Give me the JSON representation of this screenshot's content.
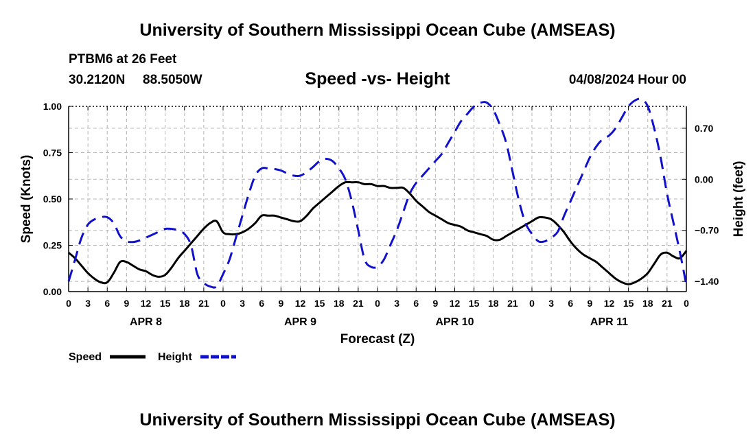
{
  "header": {
    "title": "University of Southern Mississippi Ocean Cube (AMSEAS)",
    "station": "PTBM6 at 26 Feet",
    "latitude": "30.2120N",
    "longitude": "88.5050W",
    "subtitle": "Speed -vs- Height",
    "datetime": "04/08/2024 Hour 00"
  },
  "footer": {
    "title": "University of Southern Mississippi Ocean Cube (AMSEAS)"
  },
  "chart_data": {
    "type": "line",
    "title": "Speed -vs- Height",
    "xlabel": "Forecast (Z)",
    "ylabel": "Speed (Knots)",
    "y2label": "Height (feet)",
    "grid": true,
    "xlim": [
      0,
      96
    ],
    "ylim": [
      0,
      1.0
    ],
    "y2lim": [
      -1.54,
      1.0
    ],
    "x_tick_labels": [
      "0",
      "3",
      "6",
      "9",
      "12",
      "15",
      "18",
      "21",
      "0",
      "3",
      "6",
      "9",
      "12",
      "15",
      "18",
      "21",
      "0",
      "3",
      "6",
      "9",
      "12",
      "15",
      "18",
      "21",
      "0",
      "3",
      "6",
      "9",
      "12",
      "15",
      "18",
      "21",
      "0"
    ],
    "y_ticks": [
      "0.00",
      "0.25",
      "0.50",
      "0.75",
      "1.00"
    ],
    "y2_ticks": [
      "−1.40",
      "−0.70",
      "0.00",
      "0.70"
    ],
    "y2_tick_values": [
      -1.4,
      -0.7,
      0.0,
      0.7
    ],
    "date_labels": [
      {
        "label": "APR 8",
        "hour": 12
      },
      {
        "label": "APR 9",
        "hour": 36
      },
      {
        "label": "APR 10",
        "hour": 60
      },
      {
        "label": "APR 11",
        "hour": 84
      }
    ],
    "legend": [
      {
        "name": "Speed",
        "color": "#000000",
        "style": "solid"
      },
      {
        "name": "Height",
        "color": "#1111cc",
        "style": "dashed"
      }
    ],
    "series": [
      {
        "name": "Speed",
        "axis": "left",
        "color": "#000000",
        "x": [
          0,
          1,
          2,
          3,
          4,
          5,
          6,
          7,
          8,
          9,
          10,
          11,
          12,
          13,
          14,
          15,
          16,
          17,
          18,
          19,
          20,
          21,
          22,
          23,
          24,
          25,
          26,
          27,
          28,
          29,
          30,
          31,
          32,
          33,
          34,
          35,
          36,
          37,
          38,
          39,
          40,
          41,
          42,
          43,
          44,
          45,
          46,
          47,
          48,
          49,
          50,
          51,
          52,
          53,
          54,
          55,
          56,
          57,
          58,
          59,
          60,
          61,
          62,
          63,
          64,
          65,
          66,
          67,
          68,
          69,
          70,
          71,
          72,
          73,
          74,
          75,
          76,
          77,
          78,
          79,
          80,
          81,
          82,
          83,
          84,
          85,
          86,
          87,
          88,
          89,
          90,
          91,
          92,
          93,
          94,
          95,
          96
        ],
        "values": [
          0.21,
          0.18,
          0.14,
          0.1,
          0.07,
          0.05,
          0.05,
          0.1,
          0.16,
          0.16,
          0.14,
          0.12,
          0.11,
          0.09,
          0.08,
          0.09,
          0.13,
          0.18,
          0.22,
          0.26,
          0.3,
          0.34,
          0.37,
          0.38,
          0.32,
          0.31,
          0.31,
          0.32,
          0.34,
          0.37,
          0.41,
          0.41,
          0.41,
          0.4,
          0.39,
          0.38,
          0.38,
          0.41,
          0.45,
          0.48,
          0.51,
          0.54,
          0.57,
          0.59,
          0.59,
          0.59,
          0.58,
          0.58,
          0.57,
          0.57,
          0.56,
          0.56,
          0.56,
          0.53,
          0.49,
          0.46,
          0.43,
          0.41,
          0.39,
          0.37,
          0.36,
          0.35,
          0.33,
          0.32,
          0.31,
          0.3,
          0.28,
          0.28,
          0.3,
          0.32,
          0.34,
          0.36,
          0.38,
          0.4,
          0.4,
          0.39,
          0.36,
          0.32,
          0.27,
          0.23,
          0.2,
          0.18,
          0.16,
          0.13,
          0.1,
          0.07,
          0.05,
          0.04,
          0.05,
          0.07,
          0.1,
          0.15,
          0.2,
          0.21,
          0.19,
          0.18,
          0.22
        ]
      },
      {
        "name": "Height",
        "axis": "right",
        "color": "#1111cc",
        "x": [
          0,
          1,
          2,
          3,
          4,
          5,
          6,
          7,
          8,
          9,
          10,
          11,
          12,
          13,
          14,
          15,
          16,
          17,
          18,
          19,
          20,
          21,
          22,
          23,
          24,
          25,
          26,
          27,
          28,
          29,
          30,
          31,
          32,
          33,
          34,
          35,
          36,
          37,
          38,
          39,
          40,
          41,
          42,
          43,
          44,
          45,
          46,
          47,
          48,
          49,
          50,
          51,
          52,
          53,
          54,
          55,
          56,
          57,
          58,
          59,
          60,
          61,
          62,
          63,
          64,
          65,
          66,
          67,
          68,
          69,
          70,
          71,
          72,
          73,
          74,
          75,
          76,
          77,
          78,
          79,
          80,
          81,
          82,
          83,
          84,
          85,
          86,
          87,
          88,
          89,
          90,
          91,
          92,
          93,
          94,
          95,
          96
        ],
        "values": [
          -1.4,
          -1.1,
          -0.8,
          -0.62,
          -0.55,
          -0.52,
          -0.52,
          -0.6,
          -0.78,
          -0.85,
          -0.86,
          -0.84,
          -0.8,
          -0.76,
          -0.72,
          -0.68,
          -0.68,
          -0.7,
          -0.75,
          -0.9,
          -1.3,
          -1.42,
          -1.47,
          -1.47,
          -1.3,
          -1.1,
          -0.8,
          -0.5,
          -0.2,
          0.05,
          0.15,
          0.15,
          0.14,
          0.12,
          0.08,
          0.05,
          0.05,
          0.1,
          0.17,
          0.25,
          0.28,
          0.25,
          0.15,
          0.0,
          -0.3,
          -0.7,
          -1.1,
          -1.2,
          -1.2,
          -1.1,
          -0.9,
          -0.7,
          -0.45,
          -0.2,
          -0.05,
          0.05,
          0.15,
          0.25,
          0.35,
          0.5,
          0.65,
          0.8,
          0.9,
          1.0,
          1.05,
          1.05,
          0.95,
          0.75,
          0.5,
          0.1,
          -0.3,
          -0.6,
          -0.75,
          -0.85,
          -0.85,
          -0.8,
          -0.72,
          -0.5,
          -0.3,
          -0.1,
          0.1,
          0.3,
          0.45,
          0.55,
          0.6,
          0.7,
          0.85,
          1.0,
          1.08,
          1.1,
          1.0,
          0.7,
          0.3,
          -0.2,
          -0.6,
          -1.0,
          -1.45
        ]
      }
    ]
  }
}
